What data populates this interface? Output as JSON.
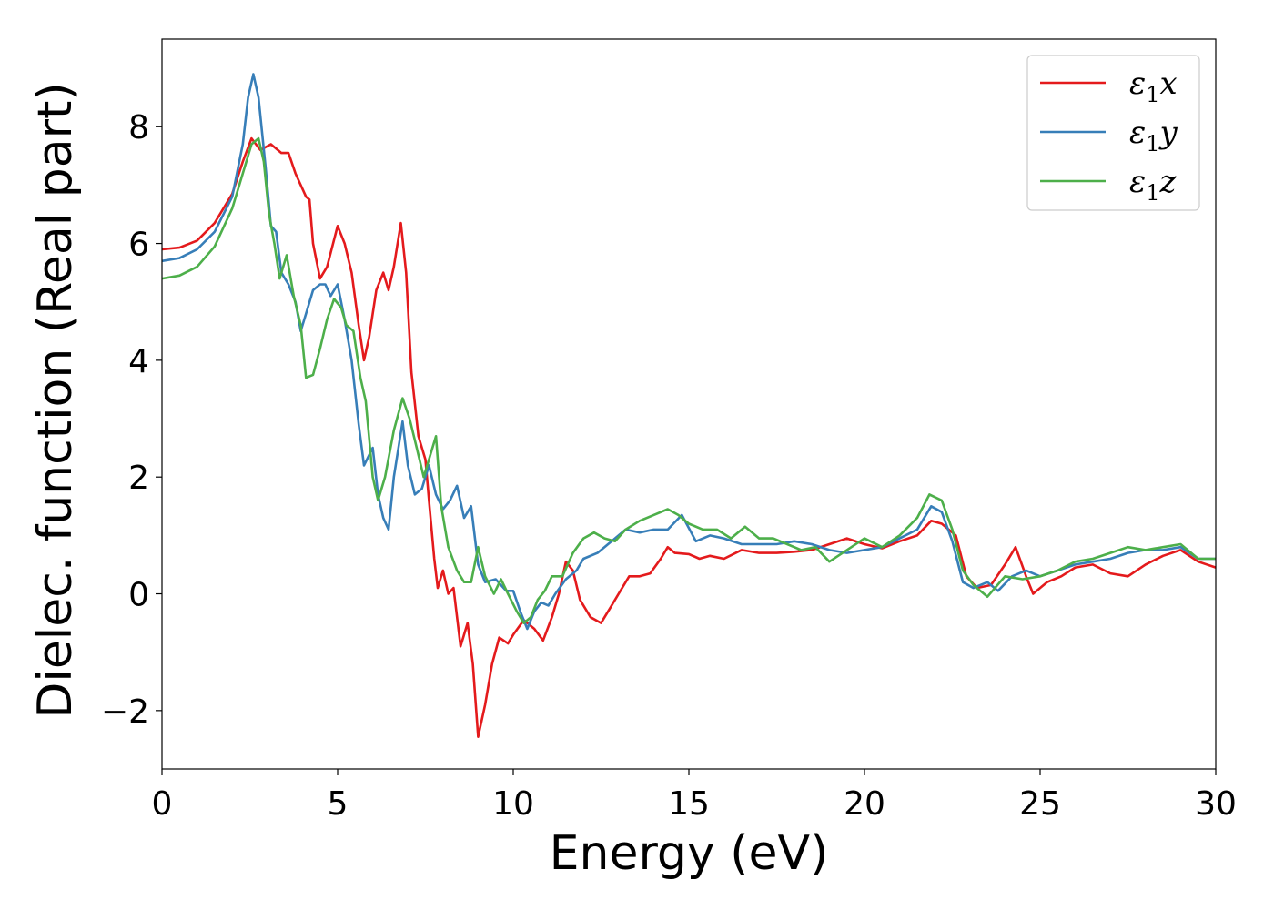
{
  "chart_data": {
    "type": "line",
    "xlabel": "Energy (eV)",
    "ylabel": "Dielec. function (Real part)",
    "xlim": [
      0,
      30
    ],
    "ylim": [
      -3,
      9.5
    ],
    "xticks": [
      0,
      5,
      10,
      15,
      20,
      25,
      30
    ],
    "xtick_labels": [
      "0",
      "5",
      "10",
      "15",
      "20",
      "25",
      "30"
    ],
    "yticks": [
      -2,
      0,
      2,
      4,
      6,
      8
    ],
    "ytick_labels": [
      "−2",
      "0",
      "2",
      "4",
      "6",
      "8"
    ],
    "grid": false,
    "legend_position": "top-right",
    "series": [
      {
        "name": "ε1x",
        "legend": {
          "base": "ε",
          "sub": "1",
          "suffix": "x"
        },
        "color": "#e41a1c",
        "points": [
          [
            0,
            5.9
          ],
          [
            0.5,
            5.93
          ],
          [
            1.0,
            6.05
          ],
          [
            1.5,
            6.35
          ],
          [
            2.0,
            6.85
          ],
          [
            2.3,
            7.4
          ],
          [
            2.55,
            7.8
          ],
          [
            2.8,
            7.6
          ],
          [
            3.1,
            7.7
          ],
          [
            3.4,
            7.55
          ],
          [
            3.6,
            7.55
          ],
          [
            3.8,
            7.2
          ],
          [
            4.1,
            6.8
          ],
          [
            4.2,
            6.75
          ],
          [
            4.3,
            6.0
          ],
          [
            4.5,
            5.4
          ],
          [
            4.7,
            5.6
          ],
          [
            5.0,
            6.3
          ],
          [
            5.2,
            6.0
          ],
          [
            5.4,
            5.5
          ],
          [
            5.6,
            4.6
          ],
          [
            5.75,
            4.0
          ],
          [
            5.9,
            4.4
          ],
          [
            6.1,
            5.2
          ],
          [
            6.3,
            5.5
          ],
          [
            6.45,
            5.2
          ],
          [
            6.6,
            5.6
          ],
          [
            6.8,
            6.35
          ],
          [
            6.95,
            5.5
          ],
          [
            7.1,
            3.8
          ],
          [
            7.3,
            2.7
          ],
          [
            7.5,
            2.3
          ],
          [
            7.6,
            1.6
          ],
          [
            7.75,
            0.6
          ],
          [
            7.85,
            0.1
          ],
          [
            8.0,
            0.4
          ],
          [
            8.15,
            0.0
          ],
          [
            8.3,
            0.1
          ],
          [
            8.5,
            -0.9
          ],
          [
            8.7,
            -0.5
          ],
          [
            8.85,
            -1.2
          ],
          [
            9.0,
            -2.45
          ],
          [
            9.2,
            -1.9
          ],
          [
            9.4,
            -1.2
          ],
          [
            9.6,
            -0.75
          ],
          [
            9.85,
            -0.85
          ],
          [
            10.0,
            -0.7
          ],
          [
            10.3,
            -0.45
          ],
          [
            10.6,
            -0.6
          ],
          [
            10.85,
            -0.8
          ],
          [
            11.1,
            -0.4
          ],
          [
            11.3,
            0.0
          ],
          [
            11.5,
            0.55
          ],
          [
            11.7,
            0.4
          ],
          [
            11.9,
            -0.1
          ],
          [
            12.2,
            -0.4
          ],
          [
            12.5,
            -0.5
          ],
          [
            12.8,
            -0.2
          ],
          [
            13.0,
            0.0
          ],
          [
            13.3,
            0.3
          ],
          [
            13.6,
            0.3
          ],
          [
            13.9,
            0.35
          ],
          [
            14.2,
            0.6
          ],
          [
            14.4,
            0.8
          ],
          [
            14.6,
            0.7
          ],
          [
            15.0,
            0.68
          ],
          [
            15.3,
            0.6
          ],
          [
            15.6,
            0.65
          ],
          [
            16.0,
            0.6
          ],
          [
            16.5,
            0.75
          ],
          [
            17.0,
            0.7
          ],
          [
            17.5,
            0.7
          ],
          [
            18.0,
            0.72
          ],
          [
            18.5,
            0.75
          ],
          [
            19.0,
            0.85
          ],
          [
            19.5,
            0.95
          ],
          [
            20.0,
            0.85
          ],
          [
            20.5,
            0.78
          ],
          [
            21.0,
            0.9
          ],
          [
            21.5,
            1.0
          ],
          [
            21.9,
            1.25
          ],
          [
            22.2,
            1.2
          ],
          [
            22.6,
            1.0
          ],
          [
            22.9,
            0.3
          ],
          [
            23.2,
            0.1
          ],
          [
            23.6,
            0.15
          ],
          [
            24.0,
            0.5
          ],
          [
            24.3,
            0.8
          ],
          [
            24.6,
            0.3
          ],
          [
            24.8,
            0.0
          ],
          [
            25.2,
            0.2
          ],
          [
            25.6,
            0.3
          ],
          [
            26.0,
            0.45
          ],
          [
            26.5,
            0.5
          ],
          [
            27.0,
            0.35
          ],
          [
            27.5,
            0.3
          ],
          [
            28.0,
            0.5
          ],
          [
            28.5,
            0.65
          ],
          [
            29.0,
            0.75
          ],
          [
            29.5,
            0.55
          ],
          [
            30,
            0.45
          ]
        ]
      },
      {
        "name": "ε1y",
        "legend": {
          "base": "ε",
          "sub": "1",
          "suffix": "y"
        },
        "color": "#377eb8",
        "points": [
          [
            0,
            5.7
          ],
          [
            0.5,
            5.75
          ],
          [
            1.0,
            5.9
          ],
          [
            1.5,
            6.2
          ],
          [
            2.0,
            6.8
          ],
          [
            2.3,
            7.7
          ],
          [
            2.45,
            8.5
          ],
          [
            2.6,
            8.9
          ],
          [
            2.75,
            8.5
          ],
          [
            2.95,
            7.3
          ],
          [
            3.1,
            6.3
          ],
          [
            3.25,
            6.2
          ],
          [
            3.4,
            5.5
          ],
          [
            3.6,
            5.3
          ],
          [
            3.8,
            5.0
          ],
          [
            3.95,
            4.5
          ],
          [
            4.1,
            4.8
          ],
          [
            4.3,
            5.2
          ],
          [
            4.5,
            5.3
          ],
          [
            4.65,
            5.3
          ],
          [
            4.8,
            5.1
          ],
          [
            5.0,
            5.3
          ],
          [
            5.2,
            4.7
          ],
          [
            5.4,
            4.0
          ],
          [
            5.6,
            2.9
          ],
          [
            5.75,
            2.2
          ],
          [
            6.0,
            2.5
          ],
          [
            6.15,
            1.7
          ],
          [
            6.3,
            1.3
          ],
          [
            6.45,
            1.1
          ],
          [
            6.6,
            2.0
          ],
          [
            6.85,
            2.95
          ],
          [
            7.0,
            2.2
          ],
          [
            7.2,
            1.7
          ],
          [
            7.4,
            1.8
          ],
          [
            7.6,
            2.2
          ],
          [
            7.8,
            1.7
          ],
          [
            8.0,
            1.45
          ],
          [
            8.2,
            1.6
          ],
          [
            8.4,
            1.85
          ],
          [
            8.6,
            1.3
          ],
          [
            8.8,
            1.5
          ],
          [
            9.0,
            0.5
          ],
          [
            9.2,
            0.2
          ],
          [
            9.5,
            0.25
          ],
          [
            9.8,
            0.05
          ],
          [
            10.0,
            0.05
          ],
          [
            10.2,
            -0.3
          ],
          [
            10.4,
            -0.6
          ],
          [
            10.6,
            -0.3
          ],
          [
            10.8,
            -0.15
          ],
          [
            11.0,
            -0.2
          ],
          [
            11.2,
            0.0
          ],
          [
            11.5,
            0.25
          ],
          [
            11.8,
            0.4
          ],
          [
            12.0,
            0.6
          ],
          [
            12.4,
            0.7
          ],
          [
            12.8,
            0.9
          ],
          [
            13.2,
            1.1
          ],
          [
            13.6,
            1.05
          ],
          [
            14.0,
            1.1
          ],
          [
            14.4,
            1.1
          ],
          [
            14.8,
            1.35
          ],
          [
            15.2,
            0.9
          ],
          [
            15.6,
            1.0
          ],
          [
            16.0,
            0.95
          ],
          [
            16.5,
            0.85
          ],
          [
            17.0,
            0.85
          ],
          [
            17.5,
            0.85
          ],
          [
            18.0,
            0.9
          ],
          [
            18.5,
            0.85
          ],
          [
            19.0,
            0.75
          ],
          [
            19.5,
            0.7
          ],
          [
            20.0,
            0.75
          ],
          [
            20.5,
            0.8
          ],
          [
            21.0,
            0.95
          ],
          [
            21.5,
            1.1
          ],
          [
            21.9,
            1.5
          ],
          [
            22.2,
            1.4
          ],
          [
            22.5,
            0.9
          ],
          [
            22.8,
            0.2
          ],
          [
            23.1,
            0.1
          ],
          [
            23.5,
            0.2
          ],
          [
            23.8,
            0.05
          ],
          [
            24.2,
            0.3
          ],
          [
            24.6,
            0.4
          ],
          [
            25.0,
            0.3
          ],
          [
            25.5,
            0.4
          ],
          [
            26.0,
            0.5
          ],
          [
            26.5,
            0.55
          ],
          [
            27.0,
            0.6
          ],
          [
            27.5,
            0.7
          ],
          [
            28.0,
            0.75
          ],
          [
            28.5,
            0.75
          ],
          [
            29.0,
            0.8
          ],
          [
            29.5,
            0.6
          ],
          [
            30,
            0.6
          ]
        ]
      },
      {
        "name": "ε1z",
        "legend": {
          "base": "ε",
          "sub": "1",
          "suffix": "z"
        },
        "color": "#4daf4a",
        "points": [
          [
            0,
            5.4
          ],
          [
            0.5,
            5.45
          ],
          [
            1.0,
            5.6
          ],
          [
            1.5,
            5.95
          ],
          [
            2.0,
            6.6
          ],
          [
            2.3,
            7.2
          ],
          [
            2.55,
            7.7
          ],
          [
            2.75,
            7.8
          ],
          [
            2.9,
            7.4
          ],
          [
            3.05,
            6.5
          ],
          [
            3.2,
            6.0
          ],
          [
            3.35,
            5.4
          ],
          [
            3.55,
            5.8
          ],
          [
            3.75,
            5.1
          ],
          [
            3.95,
            4.6
          ],
          [
            4.1,
            3.7
          ],
          [
            4.3,
            3.75
          ],
          [
            4.5,
            4.2
          ],
          [
            4.7,
            4.7
          ],
          [
            4.9,
            5.05
          ],
          [
            5.1,
            4.9
          ],
          [
            5.25,
            4.6
          ],
          [
            5.45,
            4.5
          ],
          [
            5.65,
            3.7
          ],
          [
            5.8,
            3.3
          ],
          [
            6.0,
            2.0
          ],
          [
            6.15,
            1.6
          ],
          [
            6.35,
            2.0
          ],
          [
            6.6,
            2.8
          ],
          [
            6.85,
            3.35
          ],
          [
            7.05,
            3.0
          ],
          [
            7.25,
            2.5
          ],
          [
            7.45,
            2.0
          ],
          [
            7.65,
            2.4
          ],
          [
            7.8,
            2.7
          ],
          [
            7.95,
            1.5
          ],
          [
            8.15,
            0.8
          ],
          [
            8.4,
            0.4
          ],
          [
            8.6,
            0.2
          ],
          [
            8.8,
            0.2
          ],
          [
            9.0,
            0.8
          ],
          [
            9.2,
            0.3
          ],
          [
            9.45,
            0.0
          ],
          [
            9.65,
            0.25
          ],
          [
            9.85,
            0.0
          ],
          [
            10.1,
            -0.3
          ],
          [
            10.3,
            -0.5
          ],
          [
            10.5,
            -0.4
          ],
          [
            10.7,
            -0.1
          ],
          [
            10.9,
            0.05
          ],
          [
            11.1,
            0.3
          ],
          [
            11.4,
            0.3
          ],
          [
            11.7,
            0.7
          ],
          [
            12.0,
            0.95
          ],
          [
            12.3,
            1.05
          ],
          [
            12.6,
            0.95
          ],
          [
            12.9,
            0.9
          ],
          [
            13.2,
            1.1
          ],
          [
            13.6,
            1.25
          ],
          [
            14.0,
            1.35
          ],
          [
            14.4,
            1.45
          ],
          [
            14.7,
            1.35
          ],
          [
            15.0,
            1.2
          ],
          [
            15.4,
            1.1
          ],
          [
            15.8,
            1.1
          ],
          [
            16.2,
            0.95
          ],
          [
            16.6,
            1.15
          ],
          [
            17.0,
            0.95
          ],
          [
            17.4,
            0.95
          ],
          [
            17.8,
            0.85
          ],
          [
            18.2,
            0.75
          ],
          [
            18.6,
            0.8
          ],
          [
            19.0,
            0.55
          ],
          [
            19.5,
            0.75
          ],
          [
            20.0,
            0.95
          ],
          [
            20.5,
            0.8
          ],
          [
            21.0,
            1.0
          ],
          [
            21.5,
            1.3
          ],
          [
            21.85,
            1.7
          ],
          [
            22.2,
            1.6
          ],
          [
            22.5,
            1.1
          ],
          [
            22.8,
            0.4
          ],
          [
            23.1,
            0.15
          ],
          [
            23.5,
            -0.05
          ],
          [
            24.0,
            0.3
          ],
          [
            24.5,
            0.25
          ],
          [
            25.0,
            0.3
          ],
          [
            25.5,
            0.4
          ],
          [
            26.0,
            0.55
          ],
          [
            26.5,
            0.6
          ],
          [
            27.0,
            0.7
          ],
          [
            27.5,
            0.8
          ],
          [
            28.0,
            0.75
          ],
          [
            28.5,
            0.8
          ],
          [
            29.0,
            0.85
          ],
          [
            29.5,
            0.6
          ],
          [
            30,
            0.6
          ]
        ]
      }
    ]
  }
}
